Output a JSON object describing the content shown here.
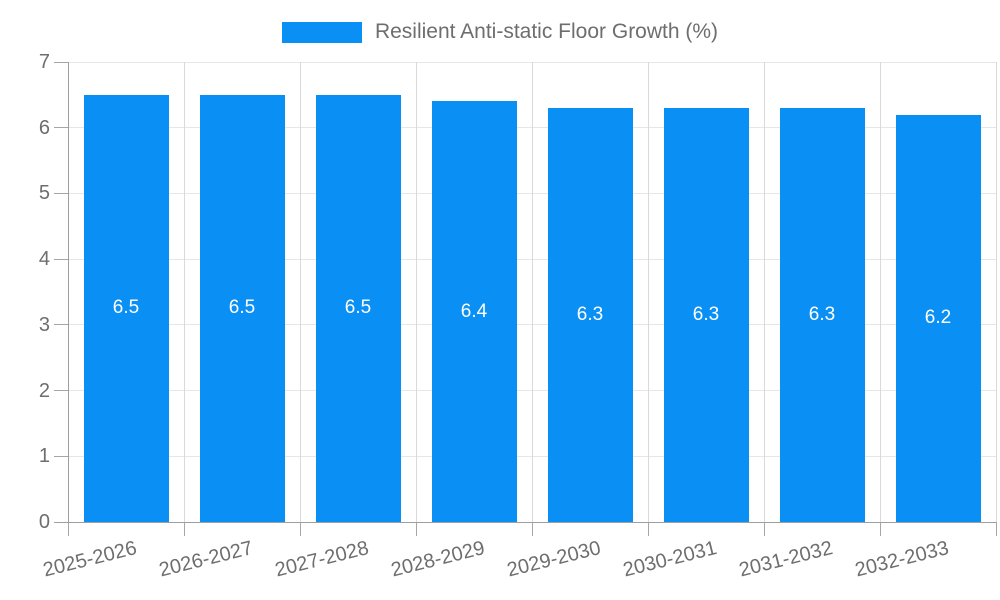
{
  "chart_data": {
    "type": "bar",
    "title": "",
    "legend_position": "top",
    "categories": [
      "2025-2026",
      "2026-2027",
      "2027-2028",
      "2028-2029",
      "2029-2030",
      "2030-2031",
      "2031-2032",
      "2032-2033"
    ],
    "series": [
      {
        "name": "Resilient Anti-static Floor Growth (%)",
        "values": [
          6.5,
          6.5,
          6.5,
          6.4,
          6.3,
          6.3,
          6.3,
          6.2
        ],
        "color": "#0a8ff5"
      }
    ],
    "xlabel": "",
    "ylabel": "",
    "ylim": [
      0,
      7
    ],
    "yticks": [
      0,
      1,
      2,
      3,
      4,
      5,
      6,
      7
    ],
    "grid": true,
    "value_labels": {
      "visible": true,
      "position": "inside-center",
      "color": "#ffffff"
    }
  },
  "colors": {
    "bar": "#0a8ff5",
    "axis": "#9e9e9e",
    "tick": "#a6a6a6",
    "grid_horizontal": "#e6e6e6",
    "grid_vertical": "#d9d9d9",
    "text": "#6e6e6e",
    "value_text": "#ffffff",
    "background": "#ffffff"
  }
}
